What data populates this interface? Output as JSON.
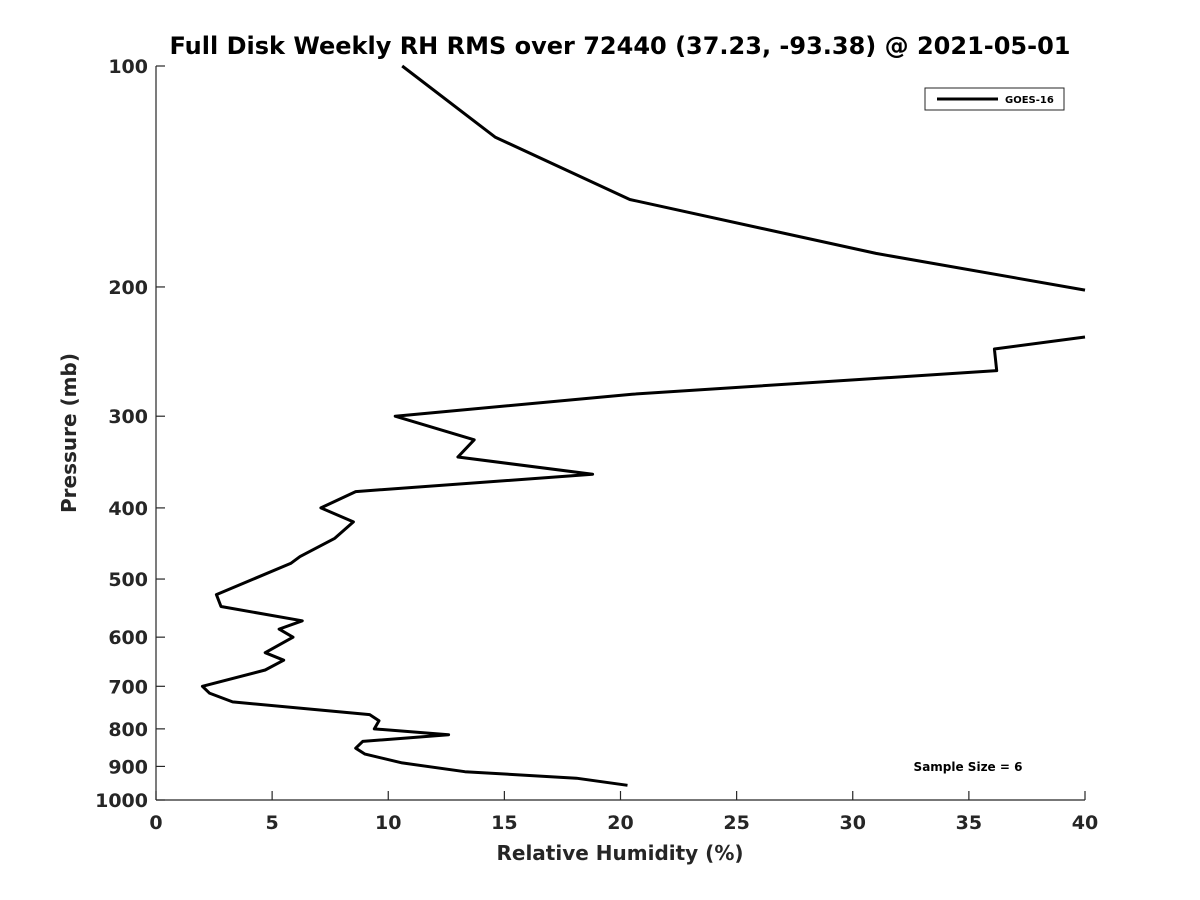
{
  "chart_data": {
    "type": "line",
    "title": "Full Disk Weekly RH RMS over 72440 (37.23, -93.38) @ 2021-05-01",
    "xlabel": "Relative Humidity (%)",
    "ylabel": "Pressure (mb)",
    "xlim": [
      0,
      40
    ],
    "ylim": [
      100,
      1000
    ],
    "yscale": "log",
    "y_reversed": true,
    "grid": false,
    "legend_position": "top-right",
    "xticks": [
      0,
      5,
      10,
      15,
      20,
      25,
      30,
      35,
      40
    ],
    "xtick_labels": [
      "0",
      "5",
      "10",
      "15",
      "20",
      "25",
      "30",
      "35",
      "40"
    ],
    "yticks": [
      100,
      200,
      300,
      400,
      500,
      600,
      700,
      800,
      900,
      1000
    ],
    "ytick_labels": [
      "100",
      "200",
      "300",
      "400",
      "500",
      "600",
      "700",
      "800",
      "900",
      "1000"
    ],
    "annotations": [
      "Sample Size = 6"
    ],
    "series": [
      {
        "name": "GOES-16",
        "color": "#000000",
        "segments": [
          [
            {
              "x": 10.6,
              "y": 100
            },
            {
              "x": 14.6,
              "y": 125
            },
            {
              "x": 20.4,
              "y": 152
            },
            {
              "x": 31.0,
              "y": 180
            },
            {
              "x": 40.0,
              "y": 202
            }
          ],
          [
            {
              "x": 40.0,
              "y": 234
            },
            {
              "x": 36.1,
              "y": 243
            },
            {
              "x": 36.2,
              "y": 260
            },
            {
              "x": 20.5,
              "y": 280
            },
            {
              "x": 10.3,
              "y": 300
            },
            {
              "x": 13.7,
              "y": 323
            },
            {
              "x": 13.0,
              "y": 341
            },
            {
              "x": 18.8,
              "y": 360
            },
            {
              "x": 8.6,
              "y": 380
            },
            {
              "x": 7.1,
              "y": 400
            },
            {
              "x": 8.5,
              "y": 418
            },
            {
              "x": 7.7,
              "y": 440
            },
            {
              "x": 6.2,
              "y": 466
            },
            {
              "x": 5.8,
              "y": 476
            },
            {
              "x": 2.6,
              "y": 525
            },
            {
              "x": 2.8,
              "y": 545
            },
            {
              "x": 6.3,
              "y": 570
            },
            {
              "x": 5.3,
              "y": 585
            },
            {
              "x": 5.9,
              "y": 600
            },
            {
              "x": 4.7,
              "y": 630
            },
            {
              "x": 5.5,
              "y": 645
            },
            {
              "x": 4.7,
              "y": 665
            },
            {
              "x": 2.0,
              "y": 700
            },
            {
              "x": 2.3,
              "y": 715
            },
            {
              "x": 3.3,
              "y": 735
            },
            {
              "x": 9.2,
              "y": 765
            },
            {
              "x": 9.6,
              "y": 780
            },
            {
              "x": 9.4,
              "y": 800
            },
            {
              "x": 12.6,
              "y": 815
            },
            {
              "x": 8.9,
              "y": 832
            },
            {
              "x": 8.6,
              "y": 850
            },
            {
              "x": 9.0,
              "y": 866
            },
            {
              "x": 10.6,
              "y": 890
            },
            {
              "x": 13.3,
              "y": 915
            },
            {
              "x": 18.1,
              "y": 934
            },
            {
              "x": 20.3,
              "y": 955
            }
          ]
        ]
      }
    ]
  }
}
